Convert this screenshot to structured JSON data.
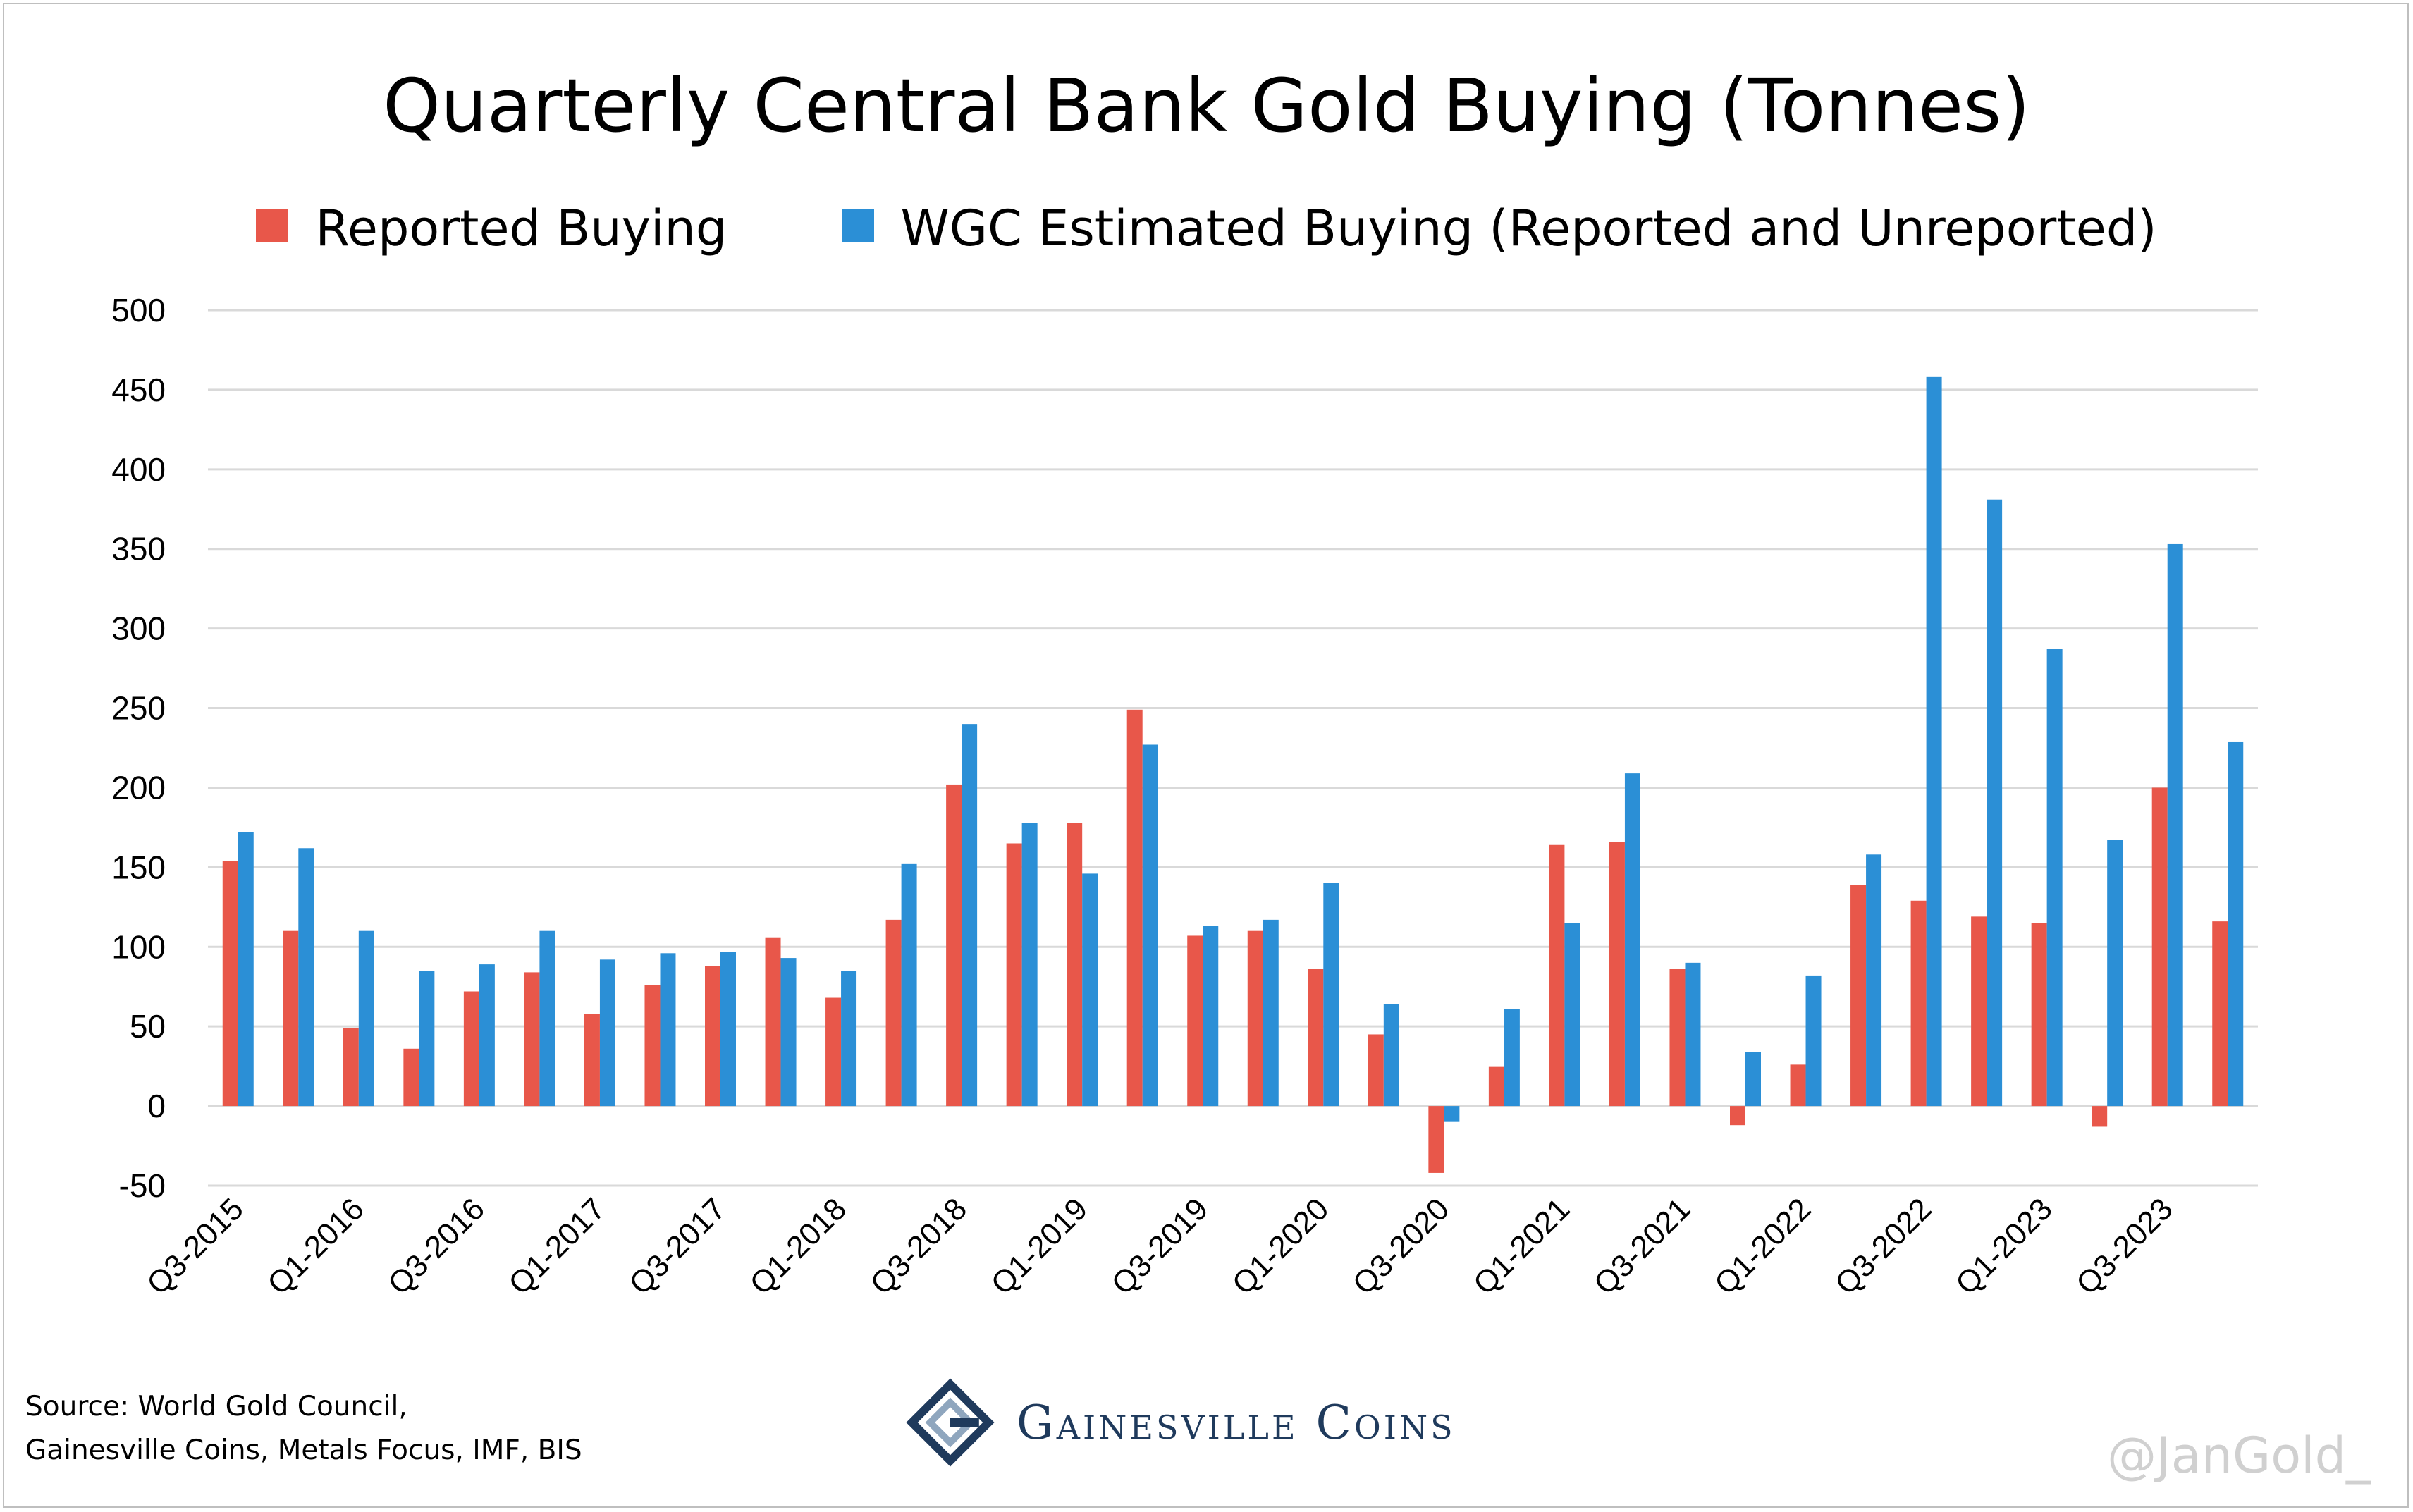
{
  "chart_data": {
    "type": "bar",
    "title": "Quarterly Central Bank Gold Buying (Tonnes)",
    "xlabel": "",
    "ylabel": "",
    "ylim": [
      -50,
      500
    ],
    "yticks": [
      500,
      450,
      400,
      350,
      300,
      250,
      200,
      150,
      100,
      50,
      0,
      -50
    ],
    "grid": true,
    "legend_position": "top",
    "categories": [
      "Q3-2015",
      "Q4-2015",
      "Q1-2016",
      "Q2-2016",
      "Q3-2016",
      "Q4-2016",
      "Q1-2017",
      "Q2-2017",
      "Q3-2017",
      "Q4-2017",
      "Q1-2018",
      "Q2-2018",
      "Q3-2018",
      "Q4-2018",
      "Q1-2019",
      "Q2-2019",
      "Q3-2019",
      "Q4-2019",
      "Q1-2020",
      "Q2-2020",
      "Q3-2020",
      "Q4-2020",
      "Q1-2021",
      "Q2-2021",
      "Q3-2021",
      "Q4-2021",
      "Q1-2022",
      "Q2-2022",
      "Q3-2022",
      "Q4-2022",
      "Q1-2023",
      "Q2-2023",
      "Q3-2023",
      "Q4-2023"
    ],
    "tick_labels": [
      "Q3-2015",
      "Q1-2016",
      "Q3-2016",
      "Q1-2017",
      "Q3-2017",
      "Q1-2018",
      "Q3-2018",
      "Q1-2019",
      "Q3-2019",
      "Q1-2020",
      "Q3-2020",
      "Q1-2021",
      "Q3-2021",
      "Q1-2022",
      "Q3-2022",
      "Q1-2023",
      "Q3-2023"
    ],
    "series": [
      {
        "name": "Reported Buying",
        "color": "#e8574a",
        "values": [
          154,
          110,
          49,
          36,
          72,
          84,
          58,
          76,
          88,
          106,
          68,
          117,
          202,
          165,
          178,
          249,
          107,
          110,
          86,
          45,
          -42,
          25,
          164,
          166,
          86,
          -12,
          26,
          139,
          129,
          119,
          115,
          -13,
          200,
          116
        ]
      },
      {
        "name": "WGC Estimated Buying (Reported and Unreported)",
        "color": "#2b8fd6",
        "values": [
          172,
          162,
          110,
          85,
          89,
          110,
          92,
          96,
          97,
          93,
          85,
          152,
          240,
          178,
          146,
          227,
          113,
          117,
          140,
          64,
          -10,
          61,
          115,
          209,
          90,
          34,
          82,
          158,
          458,
          381,
          287,
          167,
          353,
          229
        ]
      }
    ]
  },
  "source_note": {
    "line1": "Source: World Gold Council,",
    "line2": "Gainesville Coins, Metals Focus, IMF, BIS"
  },
  "brand": {
    "name": "Gainesville Coins",
    "logo_icon": "gainesville-g-logo-icon"
  },
  "watermark": "@JanGold_"
}
